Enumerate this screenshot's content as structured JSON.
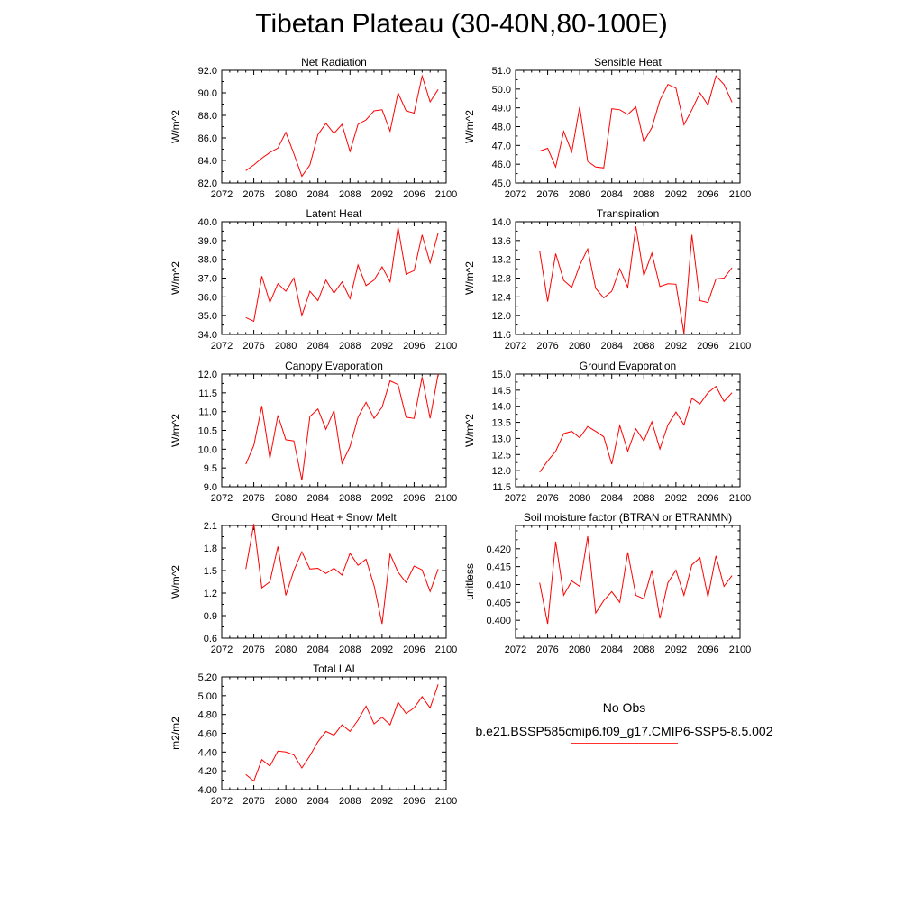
{
  "title": "Tibetan Plateau (30-40N,80-100E)",
  "legend": {
    "obs_label": "No Obs",
    "model_label": "b.e21.BSSP585cmip6.f09_g17.CMIP6-SSP5-8.5.002",
    "obs_color": "#3a3ab0",
    "model_color": "#ff0000"
  },
  "chart_data": [
    {
      "type": "line",
      "title": "Net Radiation",
      "ylabel": "W/m^2",
      "xlim": [
        2072,
        2100
      ],
      "x_ticks": [
        "2072",
        "2076",
        "2080",
        "2084",
        "2088",
        "2092",
        "2096",
        "2100"
      ],
      "ylim": [
        82,
        92
      ],
      "y_ticks": [
        "82.0",
        "84.0",
        "86.0",
        "88.0",
        "90.0",
        "92.0"
      ],
      "x": [
        2075,
        2076,
        2077,
        2078,
        2079,
        2080,
        2081,
        2082,
        2083,
        2084,
        2085,
        2086,
        2087,
        2088,
        2089,
        2090,
        2091,
        2092,
        2093,
        2094,
        2095,
        2096,
        2097,
        2098,
        2099
      ],
      "values": [
        83.1,
        83.6,
        84.2,
        84.7,
        85.1,
        86.5,
        84.6,
        82.6,
        83.6,
        86.3,
        87.3,
        86.4,
        87.2,
        84.8,
        87.2,
        87.6,
        88.4,
        88.5,
        86.6,
        90.0,
        88.4,
        88.2,
        91.5,
        89.2,
        90.3
      ]
    },
    {
      "type": "line",
      "title": "Sensible Heat",
      "ylabel": "W/m^2",
      "xlim": [
        2072,
        2100
      ],
      "x_ticks": [
        "2072",
        "2076",
        "2080",
        "2084",
        "2088",
        "2092",
        "2096",
        "2100"
      ],
      "ylim": [
        45,
        51
      ],
      "y_ticks": [
        "45.0",
        "46.0",
        "47.0",
        "48.0",
        "49.0",
        "50.0",
        "51.0"
      ],
      "x": [
        2075,
        2076,
        2077,
        2078,
        2079,
        2080,
        2081,
        2082,
        2083,
        2084,
        2085,
        2086,
        2087,
        2088,
        2089,
        2090,
        2091,
        2092,
        2093,
        2094,
        2095,
        2096,
        2097,
        2098,
        2099
      ],
      "values": [
        46.7,
        46.85,
        45.85,
        47.75,
        46.65,
        49.05,
        46.15,
        45.85,
        45.8,
        48.95,
        48.9,
        48.65,
        49.05,
        47.2,
        47.95,
        49.4,
        50.25,
        50.05,
        48.1,
        48.9,
        49.8,
        49.15,
        50.7,
        50.25,
        49.3
      ]
    },
    {
      "type": "line",
      "title": "Latent Heat",
      "ylabel": "W/m^2",
      "xlim": [
        2072,
        2100
      ],
      "x_ticks": [
        "2072",
        "2076",
        "2080",
        "2084",
        "2088",
        "2092",
        "2096",
        "2100"
      ],
      "ylim": [
        34,
        40
      ],
      "y_ticks": [
        "34.0",
        "35.0",
        "36.0",
        "37.0",
        "38.0",
        "39.0",
        "40.0"
      ],
      "x": [
        2075,
        2076,
        2077,
        2078,
        2079,
        2080,
        2081,
        2082,
        2083,
        2084,
        2085,
        2086,
        2087,
        2088,
        2089,
        2090,
        2091,
        2092,
        2093,
        2094,
        2095,
        2096,
        2097,
        2098,
        2099
      ],
      "values": [
        34.9,
        34.7,
        37.1,
        35.7,
        36.7,
        36.3,
        37.0,
        35.0,
        36.3,
        35.8,
        36.9,
        36.2,
        36.8,
        35.9,
        37.7,
        36.6,
        36.9,
        37.6,
        36.8,
        39.7,
        37.2,
        37.4,
        39.3,
        37.8,
        39.4
      ]
    },
    {
      "type": "line",
      "title": "Transpiration",
      "ylabel": "W/m^2",
      "xlim": [
        2072,
        2100
      ],
      "x_ticks": [
        "2072",
        "2076",
        "2080",
        "2084",
        "2088",
        "2092",
        "2096",
        "2100"
      ],
      "ylim": [
        11.6,
        14.0
      ],
      "y_ticks": [
        "11.6",
        "12.0",
        "12.4",
        "12.8",
        "13.2",
        "13.6",
        "14.0"
      ],
      "x": [
        2075,
        2076,
        2077,
        2078,
        2079,
        2080,
        2081,
        2082,
        2083,
        2084,
        2085,
        2086,
        2087,
        2088,
        2089,
        2090,
        2091,
        2092,
        2093,
        2094,
        2095,
        2096,
        2097,
        2098,
        2099
      ],
      "values": [
        13.38,
        12.3,
        13.32,
        12.75,
        12.6,
        13.07,
        13.42,
        12.58,
        12.38,
        12.52,
        13.0,
        12.6,
        13.9,
        12.85,
        13.33,
        12.62,
        12.68,
        12.67,
        11.62,
        13.72,
        12.32,
        12.28,
        12.78,
        12.8,
        13.02
      ]
    },
    {
      "type": "line",
      "title": "Canopy Evaporation",
      "ylabel": "W/m^2",
      "xlim": [
        2072,
        2100
      ],
      "x_ticks": [
        "2072",
        "2076",
        "2080",
        "2084",
        "2088",
        "2092",
        "2096",
        "2100"
      ],
      "ylim": [
        9.0,
        12.0
      ],
      "y_ticks": [
        "9.0",
        "9.5",
        "10.0",
        "10.5",
        "11.0",
        "11.5",
        "12.0"
      ],
      "x": [
        2075,
        2076,
        2077,
        2078,
        2079,
        2080,
        2081,
        2082,
        2083,
        2084,
        2085,
        2086,
        2087,
        2088,
        2089,
        2090,
        2091,
        2092,
        2093,
        2094,
        2095,
        2096,
        2097,
        2098,
        2099
      ],
      "values": [
        9.6,
        10.1,
        11.15,
        9.75,
        10.9,
        10.25,
        10.22,
        9.17,
        10.87,
        11.07,
        10.53,
        11.03,
        9.62,
        10.07,
        10.85,
        11.25,
        10.82,
        11.12,
        11.82,
        11.72,
        10.85,
        10.82,
        11.92,
        10.82,
        12.0
      ]
    },
    {
      "type": "line",
      "title": "Ground Evaporation",
      "ylabel": "W/m^2",
      "xlim": [
        2072,
        2100
      ],
      "x_ticks": [
        "2072",
        "2076",
        "2080",
        "2084",
        "2088",
        "2092",
        "2096",
        "2100"
      ],
      "ylim": [
        11.5,
        15.0
      ],
      "y_ticks": [
        "11.5",
        "12.0",
        "12.5",
        "13.0",
        "13.5",
        "14.0",
        "14.5",
        "15.0"
      ],
      "x": [
        2075,
        2076,
        2077,
        2078,
        2079,
        2080,
        2081,
        2082,
        2083,
        2084,
        2085,
        2086,
        2087,
        2088,
        2089,
        2090,
        2091,
        2092,
        2093,
        2094,
        2095,
        2096,
        2097,
        2098,
        2099
      ],
      "values": [
        11.95,
        12.3,
        12.6,
        13.15,
        13.22,
        13.02,
        13.37,
        13.22,
        13.05,
        12.2,
        13.4,
        12.6,
        13.3,
        12.92,
        13.52,
        12.67,
        13.42,
        13.82,
        13.42,
        14.25,
        14.07,
        14.42,
        14.62,
        14.15,
        14.42
      ]
    },
    {
      "type": "line",
      "title": "Ground Heat + Snow Melt",
      "ylabel": "W/m^2",
      "xlim": [
        2072,
        2100
      ],
      "x_ticks": [
        "2072",
        "2076",
        "2080",
        "2084",
        "2088",
        "2092",
        "2096",
        "2100"
      ],
      "ylim": [
        0.6,
        2.1
      ],
      "y_ticks": [
        "0.6",
        "0.9",
        "1.2",
        "1.5",
        "1.8",
        "2.1"
      ],
      "x": [
        2075,
        2076,
        2077,
        2078,
        2079,
        2080,
        2081,
        2082,
        2083,
        2084,
        2085,
        2086,
        2087,
        2088,
        2089,
        2090,
        2091,
        2092,
        2093,
        2094,
        2095,
        2096,
        2097,
        2098,
        2099
      ],
      "values": [
        1.52,
        2.12,
        1.27,
        1.35,
        1.82,
        1.17,
        1.5,
        1.75,
        1.52,
        1.53,
        1.46,
        1.53,
        1.44,
        1.73,
        1.57,
        1.65,
        1.3,
        0.79,
        1.72,
        1.48,
        1.34,
        1.56,
        1.51,
        1.22,
        1.52
      ]
    },
    {
      "type": "line",
      "title": "Soil moisture factor (BTRAN or BTRANMN)",
      "ylabel": "unitless",
      "xlim": [
        2072,
        2100
      ],
      "x_ticks": [
        "2072",
        "2076",
        "2080",
        "2084",
        "2088",
        "2092",
        "2096",
        "2100"
      ],
      "ylim": [
        0.395,
        0.4265
      ],
      "y_ticks": [
        "0.400",
        "0.405",
        "0.410",
        "0.415",
        "0.420"
      ],
      "x": [
        2075,
        2076,
        2077,
        2078,
        2079,
        2080,
        2081,
        2082,
        2083,
        2084,
        2085,
        2086,
        2087,
        2088,
        2089,
        2090,
        2091,
        2092,
        2093,
        2094,
        2095,
        2096,
        2097,
        2098,
        2099
      ],
      "values": [
        0.4105,
        0.399,
        0.422,
        0.407,
        0.411,
        0.4095,
        0.4235,
        0.402,
        0.4055,
        0.408,
        0.405,
        0.419,
        0.407,
        0.406,
        0.414,
        0.4005,
        0.4105,
        0.414,
        0.407,
        0.4155,
        0.4175,
        0.4065,
        0.418,
        0.4095,
        0.4125
      ]
    },
    {
      "type": "line",
      "title": "Total LAI",
      "ylabel": "m2/m2",
      "xlim": [
        2072,
        2100
      ],
      "x_ticks": [
        "2072",
        "2076",
        "2080",
        "2084",
        "2088",
        "2092",
        "2096",
        "2100"
      ],
      "ylim": [
        4.0,
        5.2
      ],
      "y_ticks": [
        "4.00",
        "4.20",
        "4.40",
        "4.60",
        "4.80",
        "5.00",
        "5.20"
      ],
      "x": [
        2075,
        2076,
        2077,
        2078,
        2079,
        2080,
        2081,
        2082,
        2083,
        2084,
        2085,
        2086,
        2087,
        2088,
        2089,
        2090,
        2091,
        2092,
        2093,
        2094,
        2095,
        2096,
        2097,
        2098,
        2099
      ],
      "values": [
        4.16,
        4.09,
        4.32,
        4.25,
        4.41,
        4.4,
        4.37,
        4.23,
        4.36,
        4.51,
        4.62,
        4.58,
        4.69,
        4.62,
        4.74,
        4.89,
        4.7,
        4.77,
        4.69,
        4.93,
        4.81,
        4.87,
        4.99,
        4.87,
        5.12
      ]
    }
  ]
}
